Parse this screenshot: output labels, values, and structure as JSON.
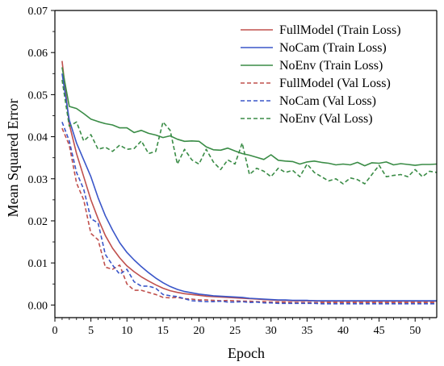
{
  "chart_data": {
    "type": "line",
    "title": "",
    "xlabel": "Epoch",
    "ylabel": "Mean Squared Error",
    "xlim": [
      0,
      53
    ],
    "ylim": [
      -0.003,
      0.07
    ],
    "xticks": [
      0,
      5,
      10,
      15,
      20,
      25,
      30,
      35,
      40,
      45,
      50
    ],
    "yticks": [
      0.0,
      0.01,
      0.02,
      0.03,
      0.04,
      0.05,
      0.06,
      0.07
    ],
    "ytick_labels": [
      "0.00",
      "0.01",
      "0.02",
      "0.03",
      "0.04",
      "0.05",
      "0.06",
      "0.07"
    ],
    "grid": false,
    "legend_position": "top-right",
    "x": [
      1,
      2,
      3,
      4,
      5,
      6,
      7,
      8,
      9,
      10,
      11,
      12,
      13,
      14,
      15,
      16,
      17,
      18,
      19,
      20,
      21,
      22,
      23,
      24,
      25,
      26,
      27,
      28,
      29,
      30,
      31,
      32,
      33,
      34,
      35,
      36,
      37,
      38,
      39,
      40,
      41,
      42,
      43,
      44,
      45,
      46,
      47,
      48,
      49,
      50,
      51,
      52,
      53
    ],
    "series": [
      {
        "name": "FullModel (Train Loss)",
        "color": "#c0504d",
        "dash": "solid",
        "values": [
          0.058,
          0.043,
          0.036,
          0.0305,
          0.025,
          0.0205,
          0.0165,
          0.0135,
          0.0112,
          0.0093,
          0.0079,
          0.0067,
          0.0057,
          0.0048,
          0.004,
          0.0034,
          0.003,
          0.0027,
          0.0025,
          0.0023,
          0.0021,
          0.002,
          0.0019,
          0.0018,
          0.0017,
          0.0016,
          0.0015,
          0.0014,
          0.0013,
          0.0012,
          0.0011,
          0.0011,
          0.001,
          0.001,
          0.001,
          0.001,
          0.0009,
          0.0009,
          0.0009,
          0.0009,
          0.0009,
          0.0009,
          0.0009,
          0.0009,
          0.0009,
          0.0009,
          0.0009,
          0.0009,
          0.0009,
          0.0009,
          0.0009,
          0.0009,
          0.0009
        ]
      },
      {
        "name": "NoCam (Train Loss)",
        "color": "#3a56c9",
        "dash": "solid",
        "values": [
          0.055,
          0.044,
          0.0385,
          0.0345,
          0.0305,
          0.0255,
          0.0212,
          0.0178,
          0.0148,
          0.0125,
          0.0107,
          0.0091,
          0.0077,
          0.0064,
          0.0053,
          0.0044,
          0.0037,
          0.0032,
          0.0029,
          0.0026,
          0.0024,
          0.0022,
          0.0021,
          0.002,
          0.0019,
          0.0018,
          0.0016,
          0.0015,
          0.0014,
          0.0013,
          0.0012,
          0.0012,
          0.0011,
          0.0011,
          0.0011,
          0.001,
          0.001,
          0.001,
          0.001,
          0.001,
          0.001,
          0.001,
          0.001,
          0.001,
          0.001,
          0.001,
          0.001,
          0.001,
          0.001,
          0.001,
          0.001,
          0.001,
          0.001
        ]
      },
      {
        "name": "NoEnv (Train Loss)",
        "color": "#3a8c46",
        "dash": "solid",
        "values": [
          0.0565,
          0.0472,
          0.0467,
          0.0455,
          0.0442,
          0.0436,
          0.0431,
          0.0428,
          0.0421,
          0.0421,
          0.041,
          0.0415,
          0.0408,
          0.0404,
          0.0398,
          0.0402,
          0.0394,
          0.0389,
          0.039,
          0.0389,
          0.0376,
          0.0369,
          0.0368,
          0.0373,
          0.0366,
          0.036,
          0.0356,
          0.0351,
          0.0346,
          0.0357,
          0.0344,
          0.0342,
          0.0341,
          0.0335,
          0.034,
          0.0342,
          0.0339,
          0.0337,
          0.0333,
          0.0335,
          0.0333,
          0.0339,
          0.0331,
          0.0338,
          0.0337,
          0.034,
          0.0333,
          0.0336,
          0.0334,
          0.0332,
          0.0334,
          0.0334,
          0.0335
        ]
      },
      {
        "name": "FullModel (Val Loss)",
        "color": "#c0504d",
        "dash": "dashed",
        "values": [
          0.042,
          0.038,
          0.029,
          0.025,
          0.017,
          0.0155,
          0.009,
          0.0085,
          0.0095,
          0.005,
          0.0035,
          0.0035,
          0.003,
          0.0025,
          0.0018,
          0.0017,
          0.0018,
          0.0015,
          0.0014,
          0.0012,
          0.0012,
          0.0011,
          0.001,
          0.0011,
          0.001,
          0.0009,
          0.0009,
          0.0008,
          0.0008,
          0.0007,
          0.0007,
          0.0007,
          0.0006,
          0.0006,
          0.0006,
          0.0006,
          0.0006,
          0.0006,
          0.0006,
          0.0006,
          0.0006,
          0.0006,
          0.0006,
          0.0006,
          0.0006,
          0.0006,
          0.0006,
          0.0006,
          0.0006,
          0.0006,
          0.0006,
          0.0006,
          0.0006
        ]
      },
      {
        "name": "NoCam (Val Loss)",
        "color": "#3a56c9",
        "dash": "dashed",
        "values": [
          0.0435,
          0.039,
          0.0315,
          0.0275,
          0.0205,
          0.0195,
          0.012,
          0.0095,
          0.0073,
          0.0085,
          0.0055,
          0.0045,
          0.0045,
          0.004,
          0.0025,
          0.0022,
          0.002,
          0.0015,
          0.001,
          0.0009,
          0.0008,
          0.0008,
          0.0009,
          0.0007,
          0.0007,
          0.0008,
          0.0006,
          0.0007,
          0.0005,
          0.0005,
          0.0004,
          0.0004,
          0.0004,
          0.0004,
          0.0004,
          0.0004,
          0.0003,
          0.0003,
          0.0003,
          0.0003,
          0.0003,
          0.0003,
          0.0003,
          0.0003,
          0.0003,
          0.0003,
          0.0003,
          0.0003,
          0.0003,
          0.0003,
          0.0003,
          0.0003,
          0.0003
        ]
      },
      {
        "name": "NoEnv (Val Loss)",
        "color": "#3a8c46",
        "dash": "dashed",
        "values": [
          0.0535,
          0.0425,
          0.0435,
          0.039,
          0.0405,
          0.037,
          0.0375,
          0.0365,
          0.038,
          0.037,
          0.0372,
          0.039,
          0.036,
          0.0365,
          0.0435,
          0.0415,
          0.0335,
          0.037,
          0.0345,
          0.0335,
          0.037,
          0.034,
          0.0322,
          0.0345,
          0.0335,
          0.0385,
          0.031,
          0.0325,
          0.0318,
          0.0305,
          0.0325,
          0.0315,
          0.032,
          0.0305,
          0.0335,
          0.0315,
          0.0305,
          0.0295,
          0.03,
          0.0288,
          0.0302,
          0.0298,
          0.0288,
          0.031,
          0.0332,
          0.0305,
          0.0308,
          0.031,
          0.0305,
          0.0322,
          0.0305,
          0.0318,
          0.0315
        ]
      }
    ]
  }
}
